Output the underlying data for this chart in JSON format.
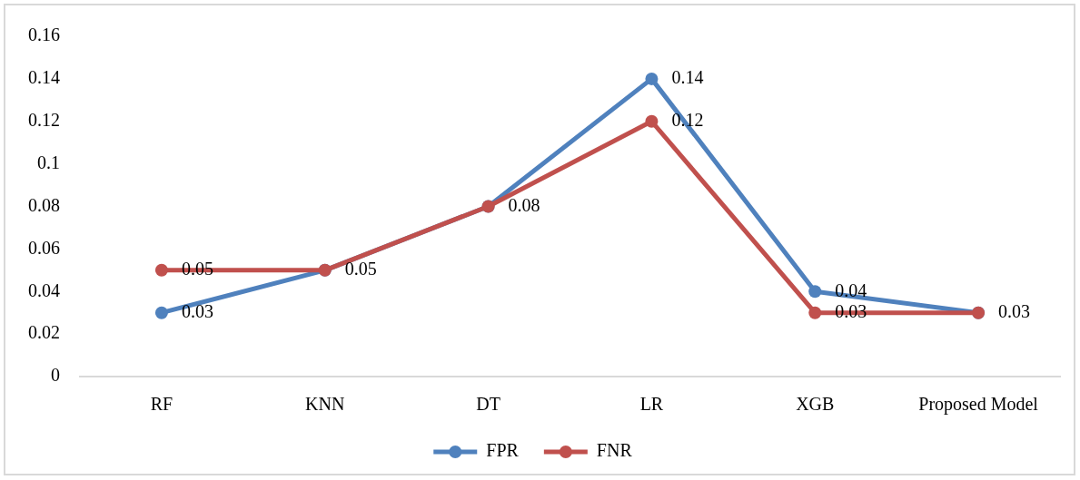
{
  "chart_data": {
    "type": "line",
    "categories": [
      "RF",
      "KNN",
      "DT",
      "LR",
      "XGB",
      "Proposed Model"
    ],
    "series": [
      {
        "name": "FPR",
        "color": "#4f81bd",
        "values": [
          0.03,
          0.05,
          0.08,
          0.14,
          0.04,
          0.03
        ],
        "value_labels": [
          "0.03",
          "0.05",
          "0.08",
          "0.14",
          "0.04",
          "0.03"
        ]
      },
      {
        "name": "FNR",
        "color": "#c0504d",
        "values": [
          0.05,
          0.05,
          0.08,
          0.12,
          0.03,
          0.03
        ],
        "value_labels": [
          "0.05",
          null,
          null,
          "0.12",
          "0.03",
          null
        ]
      }
    ],
    "ylim": [
      0,
      0.16
    ],
    "yticks": [
      0,
      0.02,
      0.04,
      0.06,
      0.08,
      0.1,
      0.12,
      0.14,
      0.16
    ],
    "grid": false,
    "legend": "bottom",
    "marker": "circle",
    "line_style": "solid"
  }
}
